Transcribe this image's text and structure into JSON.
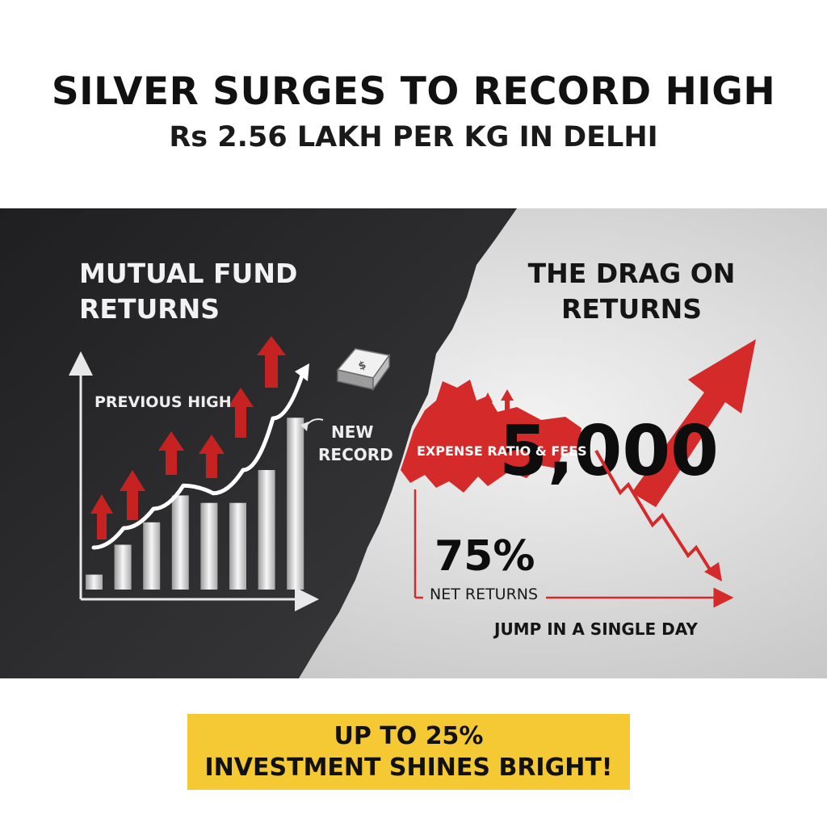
{
  "header": {
    "title": "SILVER SURGES TO RECORD HIGH",
    "subtitle": "Rs 2.56 LAKH PER KG IN DELHI"
  },
  "left_panel": {
    "title_line1": "MUTUAL FUND",
    "title_line2": "RETURNS",
    "label_previous_high": "PREVIOUS HIGH",
    "label_new_line1": "NEW",
    "label_new_line2": "RECORD",
    "bar_values": [
      1,
      3,
      4.5,
      6.3,
      5.8,
      5.8,
      8,
      11.5
    ],
    "trend_values": [
      1,
      2.5,
      4,
      5.8,
      5.2,
      7,
      11,
      14.5
    ],
    "ingot_icon": "silver-ingot-icon"
  },
  "right_panel": {
    "title_line1": "THE DRAG ON",
    "title_line2": "RETURNS",
    "label_expense": "EXPENSE RATIO & FEES",
    "big_number": "5,000",
    "percent": "75%",
    "label_net": "NET RETURNS",
    "label_jump": "JUMP IN A SINGLE DAY"
  },
  "banner": {
    "line1": "UP TO 25%",
    "line2": "INVESTMENT SHINES BRIGHT!"
  },
  "colors": {
    "dark_panel": "#2a2a2c",
    "light_panel": "#d6d6d6",
    "accent_red": "#d42a2a",
    "banner_yellow": "#f5c933"
  }
}
